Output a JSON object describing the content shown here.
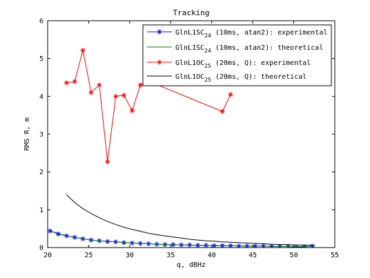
{
  "chart_data": {
    "type": "line",
    "title": "Tracking",
    "xlabel": "q, dBHz",
    "ylabel": "RMS R, m",
    "xlim": [
      20,
      55
    ],
    "ylim": [
      0,
      6
    ],
    "xticks": [
      20,
      25,
      30,
      35,
      40,
      45,
      50,
      55
    ],
    "yticks": [
      0,
      1,
      2,
      3,
      4,
      5,
      6
    ],
    "grid": false,
    "legend_position": "top-right",
    "series": [
      {
        "name": "GlnL1SC",
        "name_sub": "24",
        "name_suffix": " (10ms, atan2): experimental",
        "color": "#0000ff",
        "marker": "star",
        "marker_color": "#0000ff",
        "x": [
          20.3,
          21.3,
          22.3,
          23.3,
          24.3,
          25.3,
          26.3,
          27.3,
          28.3,
          29.3,
          30.3,
          31.3,
          32.3,
          33.3,
          34.3,
          35.3,
          36.3,
          37.3,
          38.3,
          39.3,
          40.3,
          41.3,
          42.3,
          43.3,
          44.3,
          45.3,
          46.3,
          47.3,
          48.3,
          49.3,
          50.3,
          51.3,
          52.3
        ],
        "y": [
          0.44,
          0.36,
          0.31,
          0.27,
          0.23,
          0.2,
          0.18,
          0.16,
          0.15,
          0.13,
          0.12,
          0.11,
          0.1,
          0.09,
          0.08,
          0.08,
          0.07,
          0.07,
          0.06,
          0.06,
          0.05,
          0.05,
          0.05,
          0.04,
          0.04,
          0.04,
          0.04,
          0.03,
          0.03,
          0.03,
          0.01,
          0.02,
          0.04
        ]
      },
      {
        "name": "GlnL1SC",
        "name_sub": "24",
        "name_suffix": " (10ms, atan2): theoretical",
        "color": "#008000",
        "marker": "none",
        "x": [
          20.3,
          22.3,
          24.3,
          26.3,
          28.3,
          30.3,
          32.3,
          34.3,
          36.3,
          38.3,
          40.3,
          42.3,
          44.3,
          46.3,
          48.3,
          50.3,
          52.3
        ],
        "y": [
          0.44,
          0.31,
          0.23,
          0.18,
          0.15,
          0.12,
          0.1,
          0.08,
          0.07,
          0.06,
          0.05,
          0.05,
          0.04,
          0.04,
          0.03,
          0.03,
          0.03
        ]
      },
      {
        "name": "GlnL1OC",
        "name_sub": "25",
        "name_suffix": " (20ms, Q): experimental",
        "color": "#ff0000",
        "marker": "star",
        "marker_color": "#ff0000",
        "x": [
          22.3,
          23.3,
          24.3,
          25.3,
          26.3,
          27.3,
          28.3,
          29.3,
          30.3,
          31.3,
          32.3,
          41.3,
          42.3
        ],
        "y": [
          4.36,
          4.39,
          5.22,
          4.1,
          4.3,
          2.27,
          4.0,
          4.03,
          3.62,
          4.3,
          4.4,
          3.6,
          4.05
        ]
      },
      {
        "name": "GlnL1OC",
        "name_sub": "25",
        "name_suffix": " (20ms, Q): theoretical",
        "color": "#000000",
        "marker": "none",
        "x": [
          22.3,
          23.3,
          24.3,
          25.3,
          26.3,
          27.3,
          28.3,
          29.3,
          30.3,
          31.3,
          32.3,
          33.3,
          34.3,
          35.3,
          36.3,
          37.3,
          38.3,
          39.3,
          40.3,
          41.3,
          42.3,
          43.3,
          44.3,
          45.3,
          46.3,
          47.3,
          48.3,
          49.3,
          50.3,
          51.3,
          52.3
        ],
        "y": [
          1.4,
          1.19,
          1.03,
          0.9,
          0.79,
          0.69,
          0.61,
          0.54,
          0.48,
          0.43,
          0.38,
          0.34,
          0.31,
          0.28,
          0.25,
          0.22,
          0.2,
          0.18,
          0.17,
          0.15,
          0.14,
          0.13,
          0.12,
          0.11,
          0.1,
          0.09,
          0.08,
          0.08,
          0.07,
          0.07,
          0.06
        ]
      }
    ]
  }
}
